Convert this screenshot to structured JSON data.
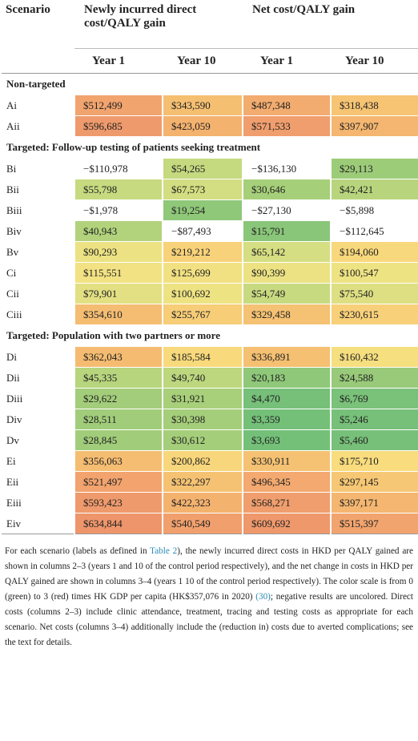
{
  "table": {
    "headers": {
      "scenario": "Scenario",
      "direct": "Newly incurred direct cost/QALY gain",
      "net": "Net cost/QALY gain",
      "years": [
        "Year 1",
        "Year 10",
        "Year 1",
        "Year 10"
      ]
    },
    "sections": [
      {
        "title": "Non-targeted",
        "rows": [
          {
            "label": "Ai",
            "cells": [
              "$512,499",
              "$343,590",
              "$487,348",
              "$318,438"
            ],
            "colors": [
              "#f2a46e",
              "#f5bf72",
              "#f3ac6f",
              "#f6c473"
            ]
          },
          {
            "label": "Aii",
            "cells": [
              "$596,685",
              "$423,059",
              "$571,533",
              "$397,907"
            ],
            "colors": [
              "#ef9a6c",
              "#f4b26f",
              "#f09e6d",
              "#f4b670"
            ]
          }
        ]
      },
      {
        "title": "Targeted: Follow-up testing of patients seeking treatment",
        "rows": [
          {
            "label": "Bi",
            "cells": [
              "−$110,978",
              "$54,265",
              "−$136,130",
              "$29,113"
            ],
            "colors": [
              "#ffffff",
              "#c5d97f",
              "#ffffff",
              "#9dcc79"
            ]
          },
          {
            "label": "Bii",
            "cells": [
              "$55,798",
              "$67,573",
              "$30,646",
              "$42,421"
            ],
            "colors": [
              "#c7da80",
              "#d3dd81",
              "#a6cf7a",
              "#b8d57d"
            ]
          },
          {
            "label": "Biii",
            "cells": [
              "−$1,978",
              "$19,254",
              "−$27,130",
              "−$5,898"
            ],
            "colors": [
              "#ffffff",
              "#8fc879",
              "#ffffff",
              "#ffffff"
            ]
          },
          {
            "label": "Biv",
            "cells": [
              "$40,943",
              "−$87,493",
              "$15,791",
              "−$112,645"
            ],
            "colors": [
              "#b2d37c",
              "#ffffff",
              "#8ac679",
              "#ffffff"
            ]
          },
          {
            "label": "Bv",
            "cells": [
              "$90,293",
              "$219,212",
              "$65,142",
              "$194,060"
            ],
            "colors": [
              "#ece283",
              "#f8d27a",
              "#d5de82",
              "#f8d87c"
            ]
          },
          {
            "label": "Ci",
            "cells": [
              "$115,551",
              "$125,699",
              "$90,399",
              "$100,547"
            ],
            "colors": [
              "#f2e283",
              "#f2e182",
              "#ece283",
              "#eee383"
            ]
          },
          {
            "label": "Cii",
            "cells": [
              "$79,901",
              "$100,692",
              "$54,749",
              "$75,540"
            ],
            "colors": [
              "#e3e083",
              "#eee383",
              "#c8da80",
              "#dedf82"
            ]
          },
          {
            "label": "Ciii",
            "cells": [
              "$354,610",
              "$255,767",
              "$329,458",
              "$230,615"
            ],
            "colors": [
              "#f5bd72",
              "#f7cd78",
              "#f5c273",
              "#f7d079"
            ]
          }
        ]
      },
      {
        "title": "Targeted: Population with two partners or more",
        "rows": [
          {
            "label": "Di",
            "cells": [
              "$362,043",
              "$185,584",
              "$336,891",
              "$160,432"
            ],
            "colors": [
              "#f5bc71",
              "#f8da7c",
              "#f5c072",
              "#f5df7f"
            ]
          },
          {
            "label": "Dii",
            "cells": [
              "$45,335",
              "$49,740",
              "$20,183",
              "$24,588"
            ],
            "colors": [
              "#b7d57d",
              "#bdd77e",
              "#8fc879",
              "#98ca79"
            ]
          },
          {
            "label": "Diii",
            "cells": [
              "$29,622",
              "$31,921",
              "$4,470",
              "$6,769"
            ],
            "colors": [
              "#a3cd7a",
              "#a8cf7a",
              "#76c079",
              "#7ac179"
            ]
          },
          {
            "label": "Div",
            "cells": [
              "$28,511",
              "$30,398",
              "$3,359",
              "$5,246"
            ],
            "colors": [
              "#a1cd7a",
              "#a5ce7a",
              "#74c079",
              "#77c079"
            ]
          },
          {
            "label": "Dv",
            "cells": [
              "$28,845",
              "$30,612",
              "$3,693",
              "$5,460"
            ],
            "colors": [
              "#a1cd7a",
              "#a5ce7a",
              "#74c079",
              "#77c079"
            ]
          },
          {
            "label": "Ei",
            "cells": [
              "$356,063",
              "$200,862",
              "$330,911",
              "$175,710"
            ],
            "colors": [
              "#f5bd72",
              "#f8d67b",
              "#f5c273",
              "#f8dc7d"
            ]
          },
          {
            "label": "Eii",
            "cells": [
              "$521,497",
              "$322,297",
              "$496,345",
              "$297,145"
            ],
            "colors": [
              "#f2a36e",
              "#f5c273",
              "#f3a96f",
              "#f6c774"
            ]
          },
          {
            "label": "Eiii",
            "cells": [
              "$593,423",
              "$422,323",
              "$568,271",
              "$397,171"
            ],
            "colors": [
              "#ef9a6c",
              "#f4b26f",
              "#f09e6d",
              "#f4b670"
            ]
          },
          {
            "label": "Eiv",
            "cells": [
              "$634,844",
              "$540,549",
              "$609,692",
              "$515,397"
            ],
            "colors": [
              "#ee956b",
              "#f1a06d",
              "#ef986c",
              "#f2a46e"
            ]
          }
        ]
      }
    ]
  },
  "footnote": {
    "part1": "For each scenario (labels as defined in ",
    "link1": "Table 2",
    "part2": "), the newly incurred direct costs in HKD per QALY gained are shown in columns 2–3 (years 1 and 10 of the control period respectively), and the net change in costs in HKD per QALY gained are shown in columns 3–4 (years 1 10 of the control period respectively). The color scale is from 0 (green) to 3 (red) times HK GDP per capita (HK$357,076 in 2020) ",
    "link2": "(30)",
    "part3": "; negative results are uncolored. Direct costs (columns 2–3) include clinic attendance, treatment, tracing and testing costs as appropriate for each scenario. Net costs (columns 3–4) additionally include the (reduction in) costs due to averted complications; see the text for details."
  }
}
